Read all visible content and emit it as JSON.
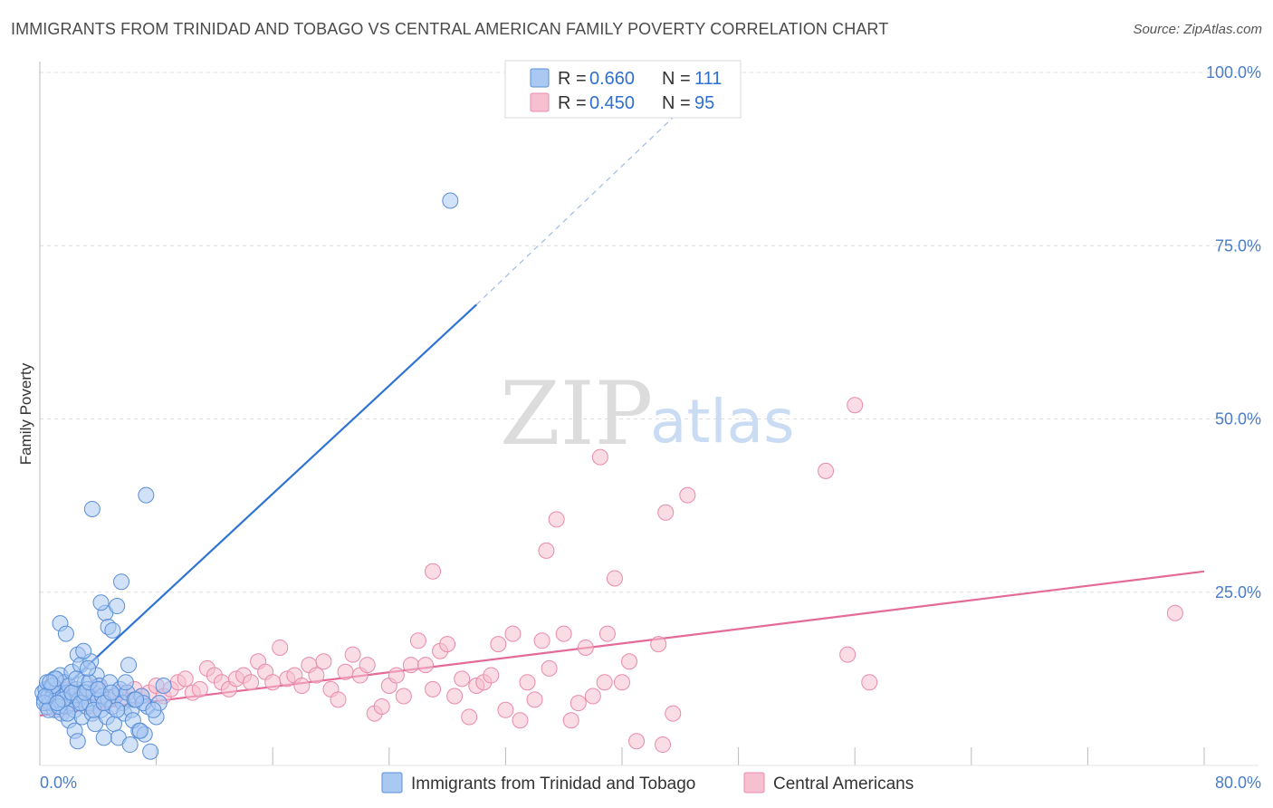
{
  "header": {
    "title": "IMMIGRANTS FROM TRINIDAD AND TOBAGO VS CENTRAL AMERICAN FAMILY POVERTY CORRELATION CHART",
    "source": "Source: ZipAtlas.com"
  },
  "watermark": {
    "zip": "ZIP",
    "atlas": "atlas"
  },
  "legend_box": {
    "rows": [
      {
        "r_label": "R = ",
        "r_value": "0.660",
        "n_label": "N = ",
        "n_value": "111"
      },
      {
        "r_label": "R = ",
        "r_value": "0.450",
        "n_label": "N = ",
        "n_value": "95"
      }
    ]
  },
  "bottom_legend": {
    "items": [
      {
        "label": "Immigrants from Trinidad and Tobago"
      },
      {
        "label": "Central Americans"
      }
    ]
  },
  "chart_data": {
    "type": "scatter",
    "title": "IMMIGRANTS FROM TRINIDAD AND TOBAGO VS CENTRAL AMERICAN FAMILY POVERTY CORRELATION CHART",
    "xlabel": "",
    "ylabel": "Family Poverty",
    "xlim": [
      0,
      80
    ],
    "ylim": [
      0,
      100
    ],
    "x_tick_labels": [
      "0.0%",
      "80.0%"
    ],
    "y_tick_labels": [
      "100.0%",
      "75.0%",
      "50.0%",
      "25.0%"
    ],
    "y_tick_values": [
      100,
      75,
      50,
      25
    ],
    "grid": true,
    "legend_position": "top-center",
    "colors": {
      "blue_fill": "#a9c8f2",
      "blue_stroke": "#5a8fd8",
      "blue_line": "#2f74d4",
      "pink_fill": "#f6c0d0",
      "pink_stroke": "#e98bab",
      "pink_line": "#e46a97",
      "tick_text": "#4a7cc9"
    },
    "series": [
      {
        "name": "Immigrants from Trinidad and Tobago",
        "color": "#a9c8f2",
        "trend": {
          "x0": 0,
          "y0": 8.0,
          "x1": 30.0,
          "y1": 66.5,
          "dashed_to_x": 45.0,
          "dashed_to_y": 96.5
        },
        "points": [
          [
            0.2,
            10.5
          ],
          [
            0.3,
            9.5
          ],
          [
            0.4,
            11.0
          ],
          [
            0.5,
            8.5
          ],
          [
            0.5,
            12.0
          ],
          [
            0.6,
            10.0
          ],
          [
            0.7,
            9.0
          ],
          [
            0.8,
            11.5
          ],
          [
            0.9,
            10.0
          ],
          [
            1.0,
            12.5
          ],
          [
            1.0,
            8.0
          ],
          [
            1.1,
            9.5
          ],
          [
            1.2,
            11.0
          ],
          [
            1.3,
            10.5
          ],
          [
            1.4,
            13.0
          ],
          [
            1.5,
            9.0
          ],
          [
            1.5,
            7.5
          ],
          [
            1.6,
            10.0
          ],
          [
            1.7,
            12.0
          ],
          [
            1.8,
            8.5
          ],
          [
            1.9,
            10.5
          ],
          [
            2.0,
            11.5
          ],
          [
            2.0,
            6.5
          ],
          [
            2.1,
            9.0
          ],
          [
            2.2,
            13.5
          ],
          [
            2.3,
            10.0
          ],
          [
            2.4,
            8.0
          ],
          [
            2.5,
            11.0
          ],
          [
            2.6,
            16.0
          ],
          [
            2.7,
            9.5
          ],
          [
            2.8,
            14.5
          ],
          [
            2.9,
            7.0
          ],
          [
            3.0,
            10.0
          ],
          [
            3.1,
            12.0
          ],
          [
            3.2,
            8.5
          ],
          [
            3.3,
            11.0
          ],
          [
            3.4,
            9.0
          ],
          [
            3.5,
            15.0
          ],
          [
            3.6,
            7.5
          ],
          [
            3.7,
            10.5
          ],
          [
            3.8,
            6.0
          ],
          [
            3.9,
            13.0
          ],
          [
            4.0,
            9.5
          ],
          [
            4.1,
            11.5
          ],
          [
            4.2,
            8.0
          ],
          [
            4.3,
            10.0
          ],
          [
            4.5,
            22.0
          ],
          [
            4.6,
            7.0
          ],
          [
            4.7,
            9.5
          ],
          [
            4.8,
            12.0
          ],
          [
            5.0,
            8.5
          ],
          [
            5.1,
            6.0
          ],
          [
            5.2,
            10.0
          ],
          [
            5.4,
            4.0
          ],
          [
            5.5,
            11.0
          ],
          [
            5.7,
            9.0
          ],
          [
            5.8,
            7.5
          ],
          [
            6.0,
            10.5
          ],
          [
            6.2,
            3.0
          ],
          [
            6.3,
            8.0
          ],
          [
            6.5,
            9.5
          ],
          [
            6.8,
            5.0
          ],
          [
            7.0,
            10.0
          ],
          [
            7.2,
            4.5
          ],
          [
            7.4,
            8.5
          ],
          [
            7.6,
            2.0
          ],
          [
            8.0,
            7.0
          ],
          [
            8.2,
            9.0
          ],
          [
            0.3,
            9.0
          ],
          [
            0.6,
            8.0
          ],
          [
            0.9,
            11.5
          ],
          [
            1.1,
            12.5
          ],
          [
            1.3,
            8.5
          ],
          [
            1.6,
            9.5
          ],
          [
            1.9,
            7.5
          ],
          [
            2.2,
            10.5
          ],
          [
            2.5,
            12.5
          ],
          [
            2.8,
            9.0
          ],
          [
            3.1,
            10.5
          ],
          [
            3.4,
            12.0
          ],
          [
            3.7,
            8.0
          ],
          [
            4.0,
            11.0
          ],
          [
            4.4,
            9.0
          ],
          [
            4.9,
            10.5
          ],
          [
            5.3,
            8.0
          ],
          [
            5.9,
            12.0
          ],
          [
            6.4,
            6.5
          ],
          [
            7.1,
            9.0
          ],
          [
            1.4,
            20.5
          ],
          [
            1.8,
            19.0
          ],
          [
            2.4,
            5.0
          ],
          [
            2.6,
            3.5
          ],
          [
            3.0,
            16.5
          ],
          [
            3.3,
            14.0
          ],
          [
            3.6,
            37.0
          ],
          [
            4.2,
            23.5
          ],
          [
            4.4,
            4.0
          ],
          [
            4.7,
            20.0
          ],
          [
            5.0,
            19.5
          ],
          [
            5.3,
            23.0
          ],
          [
            5.6,
            26.5
          ],
          [
            6.1,
            14.5
          ],
          [
            6.6,
            9.5
          ],
          [
            6.9,
            5.0
          ],
          [
            7.3,
            39.0
          ],
          [
            7.8,
            8.0
          ],
          [
            8.5,
            11.5
          ],
          [
            28.2,
            81.5
          ],
          [
            0.4,
            10.0
          ],
          [
            0.7,
            12.0
          ],
          [
            1.2,
            9.0
          ]
        ]
      },
      {
        "name": "Central Americans",
        "color": "#f6c0d0",
        "trend": {
          "x0": 0,
          "y0": 7.2,
          "x1": 80,
          "y1": 28.0
        },
        "points": [
          [
            0.5,
            9.0
          ],
          [
            1.0,
            10.5
          ],
          [
            1.5,
            8.0
          ],
          [
            2.0,
            11.0
          ],
          [
            2.5,
            9.5
          ],
          [
            3.0,
            10.0
          ],
          [
            3.5,
            8.5
          ],
          [
            4.0,
            11.5
          ],
          [
            4.5,
            9.0
          ],
          [
            5.0,
            10.0
          ],
          [
            5.5,
            10.5
          ],
          [
            6.0,
            9.5
          ],
          [
            6.5,
            11.0
          ],
          [
            7.0,
            10.0
          ],
          [
            7.5,
            10.5
          ],
          [
            8.0,
            11.5
          ],
          [
            8.5,
            10.0
          ],
          [
            9.0,
            11.0
          ],
          [
            9.5,
            12.0
          ],
          [
            10.0,
            12.5
          ],
          [
            10.5,
            10.5
          ],
          [
            11.0,
            11.0
          ],
          [
            11.5,
            14.0
          ],
          [
            12.0,
            13.0
          ],
          [
            12.5,
            12.0
          ],
          [
            13.0,
            11.0
          ],
          [
            13.5,
            12.5
          ],
          [
            14.0,
            13.0
          ],
          [
            14.5,
            12.0
          ],
          [
            15.0,
            15.0
          ],
          [
            15.5,
            13.5
          ],
          [
            16.0,
            12.0
          ],
          [
            16.5,
            17.0
          ],
          [
            17.0,
            12.5
          ],
          [
            17.5,
            13.0
          ],
          [
            18.0,
            11.5
          ],
          [
            18.5,
            14.5
          ],
          [
            19.0,
            13.0
          ],
          [
            19.5,
            15.0
          ],
          [
            20.0,
            11.0
          ],
          [
            20.5,
            9.5
          ],
          [
            21.0,
            13.5
          ],
          [
            21.5,
            16.0
          ],
          [
            22.0,
            13.0
          ],
          [
            22.5,
            14.5
          ],
          [
            23.0,
            7.5
          ],
          [
            23.5,
            8.5
          ],
          [
            24.0,
            11.5
          ],
          [
            24.5,
            13.0
          ],
          [
            25.0,
            10.0
          ],
          [
            25.5,
            14.5
          ],
          [
            26.0,
            18.0
          ],
          [
            26.5,
            14.5
          ],
          [
            27.0,
            11.0
          ],
          [
            27.5,
            16.5
          ],
          [
            28.0,
            17.5
          ],
          [
            28.5,
            10.0
          ],
          [
            29.0,
            12.5
          ],
          [
            29.5,
            7.0
          ],
          [
            30.0,
            11.5
          ],
          [
            30.5,
            12.0
          ],
          [
            31.0,
            13.0
          ],
          [
            31.5,
            17.5
          ],
          [
            32.0,
            8.0
          ],
          [
            32.5,
            19.0
          ],
          [
            33.0,
            6.5
          ],
          [
            33.5,
            12.0
          ],
          [
            34.0,
            9.5
          ],
          [
            34.5,
            18.0
          ],
          [
            35.0,
            14.0
          ],
          [
            35.5,
            35.5
          ],
          [
            36.0,
            19.0
          ],
          [
            36.5,
            6.5
          ],
          [
            37.0,
            9.0
          ],
          [
            37.5,
            17.0
          ],
          [
            38.0,
            10.0
          ],
          [
            38.5,
            44.5
          ],
          [
            38.8,
            12.0
          ],
          [
            39.0,
            19.0
          ],
          [
            39.5,
            27.0
          ],
          [
            40.0,
            12.0
          ],
          [
            40.5,
            15.0
          ],
          [
            41.0,
            3.5
          ],
          [
            42.5,
            17.5
          ],
          [
            42.8,
            3.0
          ],
          [
            43.0,
            36.5
          ],
          [
            43.5,
            7.5
          ],
          [
            44.5,
            39.0
          ],
          [
            54.0,
            42.5
          ],
          [
            55.5,
            16.0
          ],
          [
            56.0,
            52.0
          ],
          [
            57.0,
            12.0
          ],
          [
            27.0,
            28.0
          ],
          [
            34.8,
            31.0
          ],
          [
            78.0,
            22.0
          ]
        ]
      }
    ]
  }
}
